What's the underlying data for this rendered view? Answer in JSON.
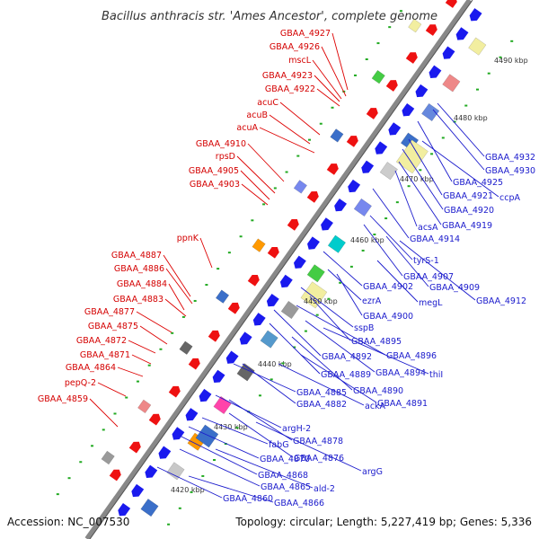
{
  "title": "Bacillus anthracis str. 'Ames Ancestor', complete genome",
  "accession": "Accession: NC_007530",
  "summary": "Topology: circular; Length: 5,227,419 bp; Genes: 5,336",
  "colors": {
    "forward": "#dd0000",
    "reverse": "#0000dd",
    "backbone": "#888888",
    "tick": "#22aa22"
  },
  "ticks": [
    {
      "label": "4490 kbp"
    },
    {
      "label": "4480 kbp"
    },
    {
      "label": "4470 kbp"
    },
    {
      "label": "4460 kbp"
    },
    {
      "label": "4450 kbp"
    },
    {
      "label": "4440 kbp"
    },
    {
      "label": "4430 kbp"
    },
    {
      "label": "4420 kbp"
    }
  ],
  "genes_forward": [
    "GBAA_4927",
    "GBAA_4926",
    "mscL",
    "GBAA_4923",
    "GBAA_4922",
    "acuC",
    "acuB",
    "acuA",
    "GBAA_4910",
    "rpsD",
    "GBAA_4905",
    "GBAA_4903",
    "ppnK",
    "GBAA_4887",
    "GBAA_4886",
    "GBAA_4884",
    "GBAA_4883",
    "GBAA_4877",
    "GBAA_4875",
    "GBAA_4872",
    "GBAA_4871",
    "GBAA_4864",
    "pepQ-2",
    "GBAA_4859"
  ],
  "genes_reverse": [
    "GBAA_4932",
    "GBAA_4930",
    "GBAA_4925",
    "GBAA_4921",
    "ccpA",
    "GBAA_4920",
    "acsA",
    "GBAA_4919",
    "GBAA_4914",
    "tyrS-1",
    "GBAA_4907",
    "GBAA_4902",
    "GBAA_4909",
    "GBAA_4912",
    "megL",
    "ezrA",
    "GBAA_4900",
    "sspB",
    "GBAA_4895",
    "GBAA_4892",
    "GBAA_4896",
    "GBAA_4889",
    "GBAA_4894",
    "thiI",
    "GBAA_4890",
    "GBAA_4885",
    "GBAA_4891",
    "GBAA_4882",
    "ackA",
    "argH-2",
    "GBAA_4878",
    "fabG",
    "GBAA_4876",
    "GBAA_4870",
    "argG",
    "GBAA_4868",
    "GBAA_4865",
    "ald-2",
    "GBAA_4860",
    "GBAA_4866"
  ]
}
